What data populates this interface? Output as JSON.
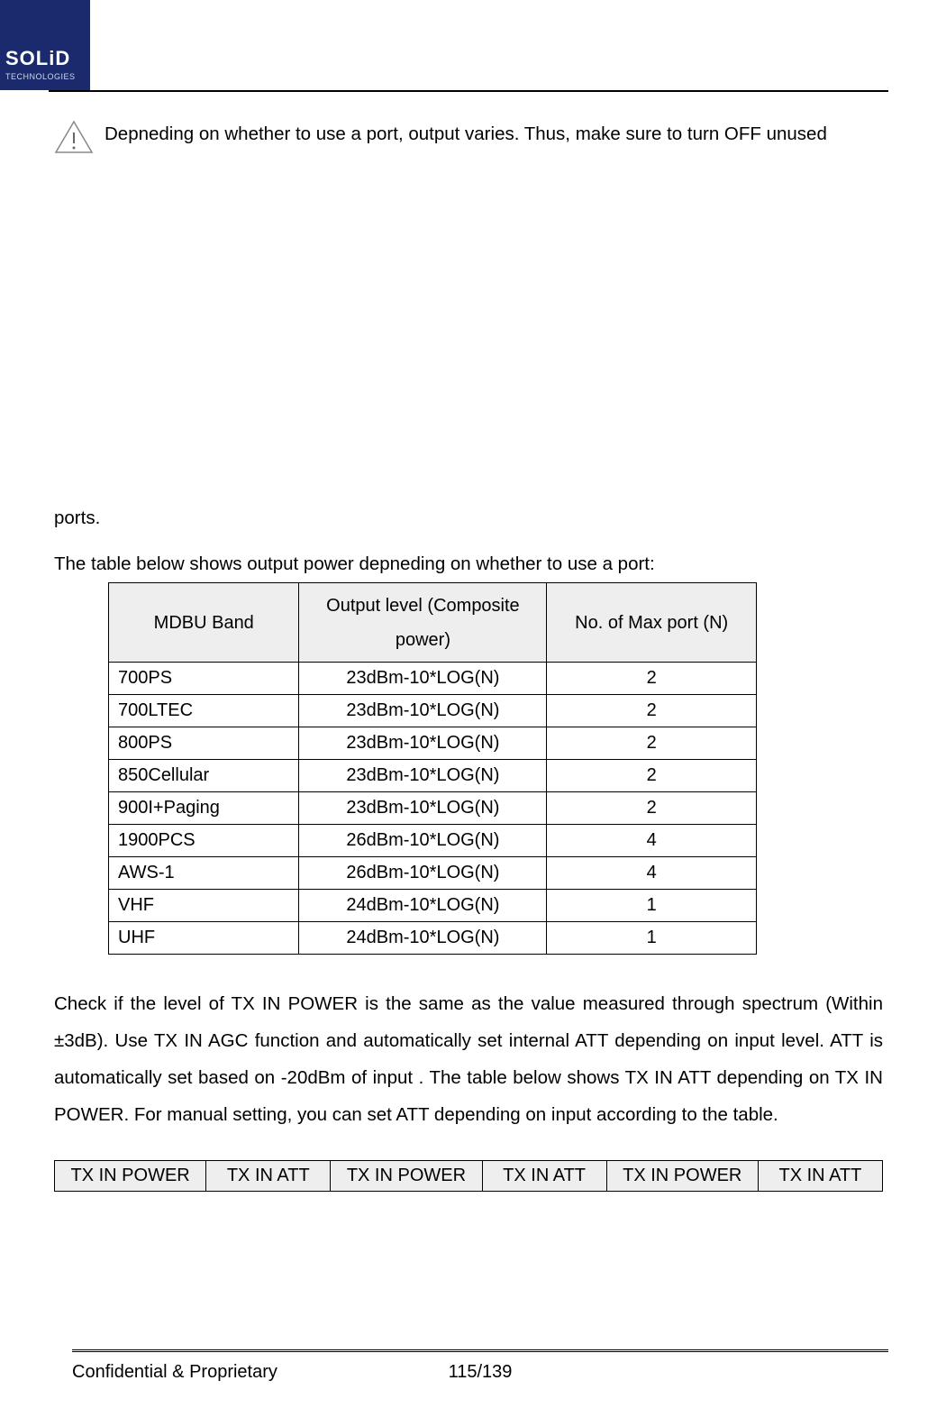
{
  "logo": {
    "brand": "SOLiD",
    "sub": "TECHNOLOGIES"
  },
  "caution": {
    "text": "Depneding on whether to use a port, output varies. Thus, make sure to turn OFF unused"
  },
  "ports_line": "ports.",
  "table_intro": "The table below shows output power depneding on whether to use a port:",
  "power_table": {
    "columns": [
      "MDBU Band",
      "Output level (Composite power)",
      "No. of Max port (N)"
    ],
    "rows": [
      [
        "700PS",
        "23dBm-10*LOG(N)",
        "2"
      ],
      [
        "700LTEC",
        "23dBm-10*LOG(N)",
        "2"
      ],
      [
        "800PS",
        "23dBm-10*LOG(N)",
        "2"
      ],
      [
        "850Cellular",
        "23dBm-10*LOG(N)",
        "2"
      ],
      [
        "900I+Paging",
        "23dBm-10*LOG(N)",
        "2"
      ],
      [
        "1900PCS",
        "26dBm-10*LOG(N)",
        "4"
      ],
      [
        "AWS-1",
        "26dBm-10*LOG(N)",
        "4"
      ],
      [
        "VHF",
        "24dBm-10*LOG(N)",
        "1"
      ],
      [
        "UHF",
        "24dBm-10*LOG(N)",
        "1"
      ]
    ],
    "header_bg": "#eeeeee"
  },
  "paragraph": "Check if the level of TX IN POWER is the same as the value measured through spectrum (Within ±3dB). Use TX IN AGC function and automatically set internal ATT depending on input level. ATT is automatically set based on -20dBm of input . The table below shows TX IN ATT depending on TX IN POWER. For manual setting, you can set ATT depending on input according to the table.",
  "att_table": {
    "columns": [
      "TX IN POWER",
      "TX IN ATT",
      "TX IN POWER",
      "TX IN ATT",
      "TX IN POWER",
      "TX IN ATT"
    ],
    "header_bg": "#eeeeee"
  },
  "footer": {
    "left": "Confidential & Proprietary",
    "center": "115/139"
  },
  "colors": {
    "logo_bg": "#1a2a6c",
    "rule": "#000000",
    "text": "#000000"
  }
}
